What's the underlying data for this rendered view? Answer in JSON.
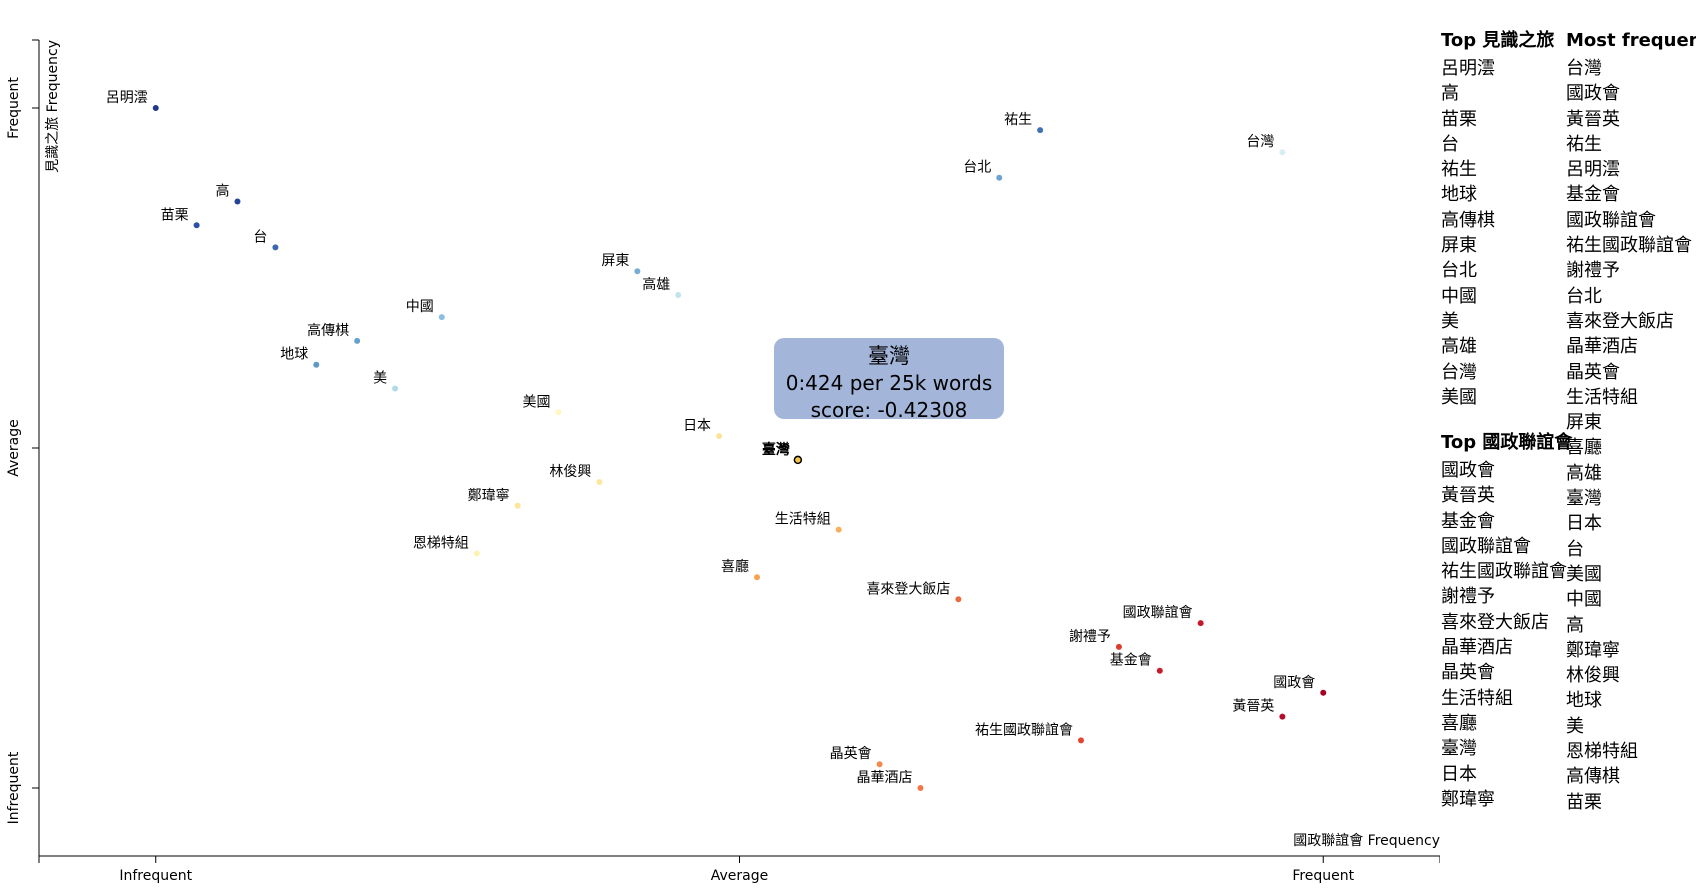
{
  "chart_data": {
    "type": "scatter",
    "xlabel": "國政聯誼會 Frequency",
    "ylabel": "見識之旅 Frequency",
    "x_ticks": [
      "Infrequent",
      "Average",
      "Frequent"
    ],
    "y_ticks": [
      "Infrequent",
      "Average",
      "Frequent"
    ],
    "xlim": [
      -1.2,
      1.2
    ],
    "ylim": [
      -1.2,
      1.2
    ],
    "points": [
      {
        "term": "呂明澐",
        "x": -1.0,
        "y": 1.0,
        "color": "#1f3a8a"
      },
      {
        "term": "高",
        "x": -0.86,
        "y": 0.725,
        "color": "#24449a"
      },
      {
        "term": "苗栗",
        "x": -0.93,
        "y": 0.655,
        "color": "#2a52a4"
      },
      {
        "term": "台",
        "x": -0.795,
        "y": 0.59,
        "color": "#3a67b0"
      },
      {
        "term": "祐生",
        "x": 0.515,
        "y": 0.935,
        "color": "#4272b4"
      },
      {
        "term": "台灣",
        "x": 0.93,
        "y": 0.87,
        "color": "#d8eef0"
      },
      {
        "term": "台北",
        "x": 0.445,
        "y": 0.795,
        "color": "#6fa3cf"
      },
      {
        "term": "屏東",
        "x": -0.175,
        "y": 0.52,
        "color": "#76aed3"
      },
      {
        "term": "高雄",
        "x": -0.105,
        "y": 0.45,
        "color": "#bfe4ec"
      },
      {
        "term": "中國",
        "x": -0.51,
        "y": 0.385,
        "color": "#8bbfdd"
      },
      {
        "term": "高傳棋",
        "x": -0.655,
        "y": 0.315,
        "color": "#67a0cb"
      },
      {
        "term": "地球",
        "x": -0.725,
        "y": 0.245,
        "color": "#5e98c7"
      },
      {
        "term": "美",
        "x": -0.59,
        "y": 0.175,
        "color": "#b2dbe9"
      },
      {
        "term": "美國",
        "x": -0.31,
        "y": 0.105,
        "color": "#fff6c2"
      },
      {
        "term": "日本",
        "x": -0.035,
        "y": 0.035,
        "color": "#fde39a"
      },
      {
        "term": "臺灣",
        "x": 0.1,
        "y": -0.035,
        "color": "#f7c44a",
        "highlight": true
      },
      {
        "term": "林俊興",
        "x": -0.24,
        "y": -0.1,
        "color": "#fde7a0"
      },
      {
        "term": "鄭瑋寧",
        "x": -0.38,
        "y": -0.17,
        "color": "#fde59a"
      },
      {
        "term": "生活特組",
        "x": 0.17,
        "y": -0.24,
        "color": "#f9ae5e"
      },
      {
        "term": "恩梯特組",
        "x": -0.45,
        "y": -0.31,
        "color": "#fbf3b0"
      },
      {
        "term": "喜廳",
        "x": 0.03,
        "y": -0.38,
        "color": "#f9a24f"
      },
      {
        "term": "喜來登大飯店",
        "x": 0.375,
        "y": -0.445,
        "color": "#ed6a3f"
      },
      {
        "term": "國政聯誼會",
        "x": 0.79,
        "y": -0.515,
        "color": "#c5182a"
      },
      {
        "term": "謝禮予",
        "x": 0.65,
        "y": -0.585,
        "color": "#dc3b2f"
      },
      {
        "term": "基金會",
        "x": 0.72,
        "y": -0.655,
        "color": "#c81c2c"
      },
      {
        "term": "國政會",
        "x": 1.0,
        "y": -0.72,
        "color": "#a50026"
      },
      {
        "term": "黃晉英",
        "x": 0.93,
        "y": -0.79,
        "color": "#b50e2a"
      },
      {
        "term": "祐生國政聯誼會",
        "x": 0.585,
        "y": -0.86,
        "color": "#e2442f"
      },
      {
        "term": "晶英會",
        "x": 0.24,
        "y": -0.93,
        "color": "#f38a4e"
      },
      {
        "term": "晶華酒店",
        "x": 0.31,
        "y": -1.0,
        "color": "#ef7748"
      }
    ]
  },
  "tooltip": {
    "term": "臺灣",
    "line1": "0:424 per 25k words",
    "line2": "score: -0.42308"
  },
  "lists": {
    "top_a_title": "Top 見識之旅",
    "top_a": [
      "呂明澐",
      "高",
      "苗栗",
      "台",
      "祐生",
      "地球",
      "高傳棋",
      "屏東",
      "台北",
      "中國",
      "美",
      "高雄",
      "台灣",
      "美國"
    ],
    "top_b_title": "Top 國政聯誼會",
    "top_b": [
      "國政會",
      "黃晉英",
      "基金會",
      "國政聯誼會",
      "祐生國政聯誼會",
      "謝禮予",
      "喜來登大飯店",
      "晶華酒店",
      "晶英會",
      "生活特組",
      "喜廳",
      "臺灣",
      "日本",
      "鄭瑋寧"
    ],
    "most_title": "Most frequent",
    "most": [
      "台灣",
      "國政會",
      "黃晉英",
      "祐生",
      "呂明澐",
      "基金會",
      "國政聯誼會",
      "祐生國政聯誼會",
      "謝禮予",
      "台北",
      "喜來登大飯店",
      "晶華酒店",
      "晶英會",
      "生活特組",
      "屏東",
      "喜廳",
      "高雄",
      "臺灣",
      "日本",
      "台",
      "美國",
      "中國",
      "高",
      "鄭瑋寧",
      "林俊興",
      "地球",
      "美",
      "恩梯特組",
      "高傳棋",
      "苗栗"
    ]
  }
}
